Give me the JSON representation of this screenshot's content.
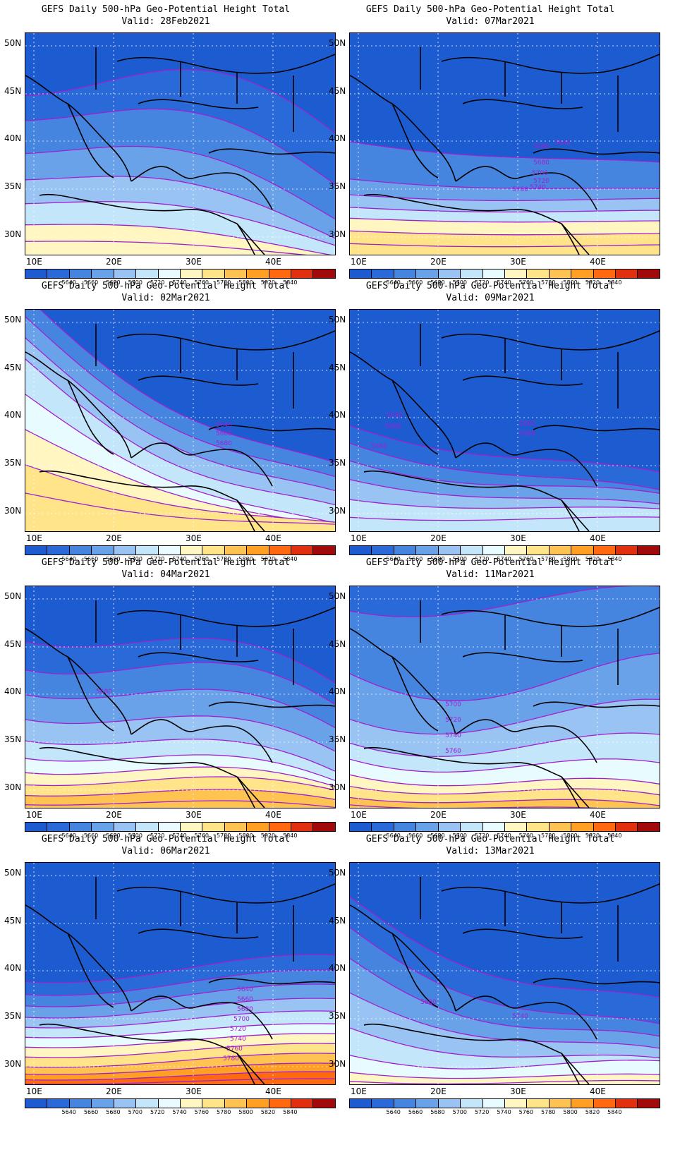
{
  "colorbar": {
    "colors": [
      "#1c5cd0",
      "#2a6ad8",
      "#4585e0",
      "#6aa2ea",
      "#98c3f3",
      "#c4e6fa",
      "#e8fbff",
      "#fff6c2",
      "#ffe489",
      "#ffc352",
      "#ffa024",
      "#ff6a10",
      "#e03010",
      "#a00a0a"
    ],
    "labels": [
      "5640",
      "5660",
      "5680",
      "5700",
      "5720",
      "5740",
      "5760",
      "5780",
      "5800",
      "5820",
      "5840"
    ]
  },
  "axes": {
    "lat_labels": [
      "50N",
      "45N",
      "40N",
      "35N",
      "30N"
    ],
    "lon_labels": [
      "10E",
      "20E",
      "30E",
      "40E"
    ]
  },
  "panels": [
    {
      "id": "p-28feb",
      "title": "GEFS Daily 500-hPa Geo-Potential Height Total",
      "valid": "Valid: 28Feb2021",
      "contour_labels": [],
      "bands": [
        {
          "color": "#1c5cd0"
        },
        {
          "color": "#2a6ad8"
        },
        {
          "color": "#4585e0"
        },
        {
          "color": "#6aa2ea"
        },
        {
          "color": "#98c3f3"
        },
        {
          "color": "#c4e6fa"
        },
        {
          "color": "#fff6c2"
        }
      ]
    },
    {
      "id": "p-07mar",
      "title": "GEFS Daily 500-hPa Geo-Potential Height Total",
      "valid": "Valid: 07Mar2021",
      "contour_labels": [
        "5640",
        "5660",
        "5680",
        "5700",
        "5720",
        "5740",
        "5760"
      ],
      "bands": [
        {
          "color": "#1c5cd0"
        },
        {
          "color": "#4585e0"
        },
        {
          "color": "#6aa2ea"
        },
        {
          "color": "#98c3f3"
        },
        {
          "color": "#c4e6fa"
        },
        {
          "color": "#fff6c2"
        },
        {
          "color": "#ffe489"
        }
      ]
    },
    {
      "id": "p-02mar",
      "title": "GEFS Daily 500-hPa Geo-Potential Height Total",
      "valid": "Valid: 02Mar2021",
      "contour_labels": [
        "5640",
        "5660",
        "5680"
      ],
      "bands": [
        {
          "color": "#1c5cd0"
        },
        {
          "color": "#4585e0"
        },
        {
          "color": "#6aa2ea"
        },
        {
          "color": "#98c3f3"
        },
        {
          "color": "#c4e6fa"
        },
        {
          "color": "#e8fbff"
        },
        {
          "color": "#fff6c2"
        },
        {
          "color": "#ffe489"
        }
      ]
    },
    {
      "id": "p-09mar",
      "title": "GEFS Daily 500-hPa Geo-Potential Height Total",
      "valid": "Valid: 09Mar2021",
      "contour_labels": [
        "5640",
        "5660",
        "5680",
        "5660",
        "5680"
      ],
      "bands": [
        {
          "color": "#1c5cd0"
        },
        {
          "color": "#2a6ad8"
        },
        {
          "color": "#4585e0"
        },
        {
          "color": "#6aa2ea"
        },
        {
          "color": "#98c3f3"
        },
        {
          "color": "#c4e6fa"
        }
      ]
    },
    {
      "id": "p-04mar",
      "title": "GEFS Daily 500-hPa Geo-Potential Height Total",
      "valid": "Valid: 04Mar2021",
      "contour_labels": [
        "5680"
      ],
      "bands": [
        {
          "color": "#1c5cd0"
        },
        {
          "color": "#2a6ad8"
        },
        {
          "color": "#4585e0"
        },
        {
          "color": "#6aa2ea"
        },
        {
          "color": "#98c3f3"
        },
        {
          "color": "#c4e6fa"
        },
        {
          "color": "#e8fbff"
        },
        {
          "color": "#fff6c2"
        },
        {
          "color": "#ffe489"
        },
        {
          "color": "#ffc352"
        }
      ]
    },
    {
      "id": "p-11mar",
      "title": "GEFS Daily 500-hPa Geo-Potential Height Total",
      "valid": "Valid: 11Mar2021",
      "contour_labels": [
        "5700",
        "5720",
        "5740",
        "5760"
      ],
      "bands": [
        {
          "color": "#2a6ad8"
        },
        {
          "color": "#4585e0"
        },
        {
          "color": "#6aa2ea"
        },
        {
          "color": "#98c3f3"
        },
        {
          "color": "#c4e6fa"
        },
        {
          "color": "#e8fbff"
        },
        {
          "color": "#fff6c2"
        },
        {
          "color": "#ffe489"
        },
        {
          "color": "#ffc352"
        }
      ]
    },
    {
      "id": "p-06mar",
      "title": "GEFS Daily 500-hPa Geo-Potential Height Total",
      "valid": "Valid: 06Mar2021",
      "contour_labels": [
        "5640",
        "5660",
        "5680",
        "5700",
        "5720",
        "5740",
        "5760",
        "5780"
      ],
      "bands": [
        {
          "color": "#1c5cd0"
        },
        {
          "color": "#2a6ad8"
        },
        {
          "color": "#4585e0"
        },
        {
          "color": "#6aa2ea"
        },
        {
          "color": "#98c3f3"
        },
        {
          "color": "#c4e6fa"
        },
        {
          "color": "#e8fbff"
        },
        {
          "color": "#fff6c2"
        },
        {
          "color": "#ffe489"
        },
        {
          "color": "#ffc352"
        },
        {
          "color": "#ffa024"
        },
        {
          "color": "#ff6a10"
        }
      ]
    },
    {
      "id": "p-13mar",
      "title": "GEFS Daily 500-hPa Geo-Potential Height Total",
      "valid": "Valid: 13Mar2021",
      "contour_labels": [
        "5680",
        "5740"
      ],
      "bands": [
        {
          "color": "#1c5cd0"
        },
        {
          "color": "#2a6ad8"
        },
        {
          "color": "#4585e0"
        },
        {
          "color": "#6aa2ea"
        },
        {
          "color": "#98c3f3"
        },
        {
          "color": "#c4e6fa"
        },
        {
          "color": "#e8fbff"
        },
        {
          "color": "#fff6c2"
        }
      ]
    }
  ]
}
